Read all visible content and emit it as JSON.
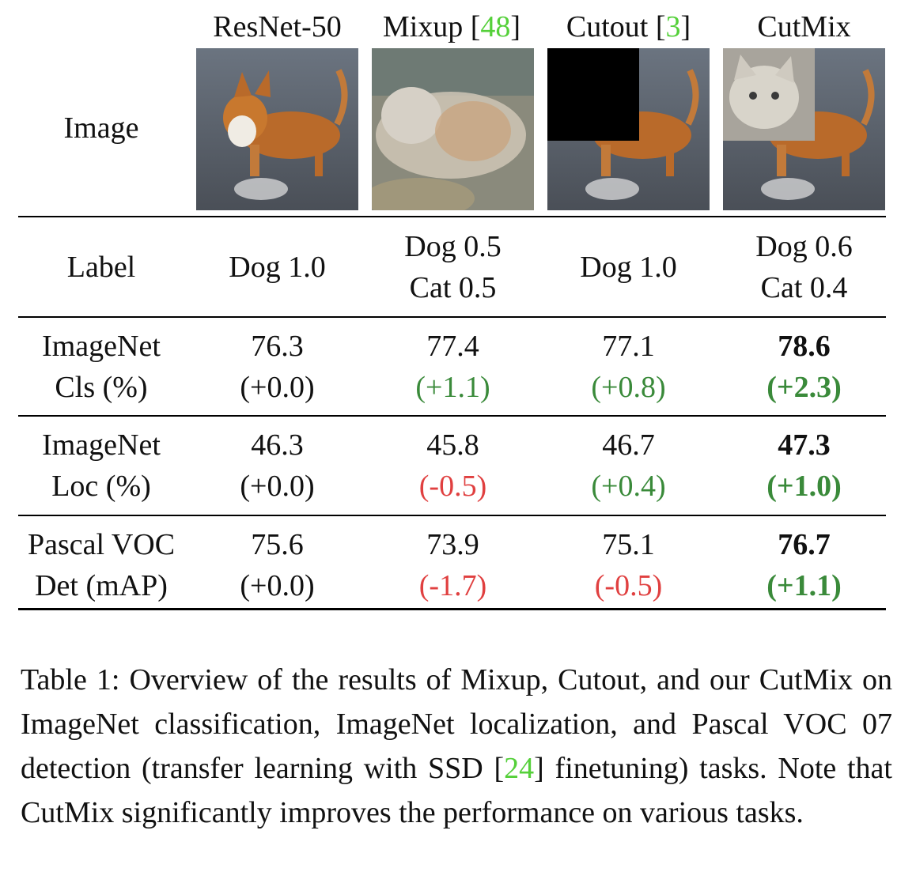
{
  "columns": {
    "resnet": "ResNet-50",
    "mixup_name": "Mixup",
    "mixup_cite_open": "[",
    "mixup_cite": "48",
    "mixup_cite_close": "]",
    "cutout_name": "Cutout",
    "cutout_cite_open": "[",
    "cutout_cite": "3",
    "cutout_cite_close": "]",
    "cutmix": "CutMix"
  },
  "rows": {
    "image": "Image",
    "label": "Label",
    "cls_line1": "ImageNet",
    "cls_line2": "Cls (%)",
    "loc_line1": "ImageNet",
    "loc_line2": "Loc (%)",
    "det_line1": "Pascal VOC",
    "det_line2": "Det (mAP)"
  },
  "labels": {
    "resnet": "Dog 1.0",
    "mixup_1": "Dog 0.5",
    "mixup_2": "Cat 0.5",
    "cutout": "Dog 1.0",
    "cutmix_1": "Dog 0.6",
    "cutmix_2": "Cat 0.4"
  },
  "cls": {
    "resnet": {
      "value": "76.3",
      "delta": "(+0.0)"
    },
    "mixup": {
      "value": "77.4",
      "delta": "(+1.1)"
    },
    "cutout": {
      "value": "77.1",
      "delta": "(+0.8)"
    },
    "cutmix": {
      "value": "78.6",
      "delta": "(+2.3)"
    }
  },
  "loc": {
    "resnet": {
      "value": "46.3",
      "delta": "(+0.0)"
    },
    "mixup": {
      "value": "45.8",
      "delta": "(-0.5)"
    },
    "cutout": {
      "value": "46.7",
      "delta": "(+0.4)"
    },
    "cutmix": {
      "value": "47.3",
      "delta": "(+1.0)"
    }
  },
  "det": {
    "resnet": {
      "value": "75.6",
      "delta": "(+0.0)"
    },
    "mixup": {
      "value": "73.9",
      "delta": "(-1.7)"
    },
    "cutout": {
      "value": "75.1",
      "delta": "(-0.5)"
    },
    "cutmix": {
      "value": "76.7",
      "delta": "(+1.1)"
    }
  },
  "colors": {
    "positive": "#3a8a3a",
    "negative": "#e04040",
    "citation": "#55d03a"
  },
  "caption": {
    "part1": "Table 1: Overview of the results of Mixup, Cutout, and our CutMix on ImageNet classification, ImageNet localization, and Pascal VOC 07 detection (transfer learning with SSD ",
    "cite_open": "[",
    "cite": "24",
    "cite_close": "]",
    "part2": " finetuning) tasks. Note that CutMix significantly improves the performance on various tasks."
  }
}
